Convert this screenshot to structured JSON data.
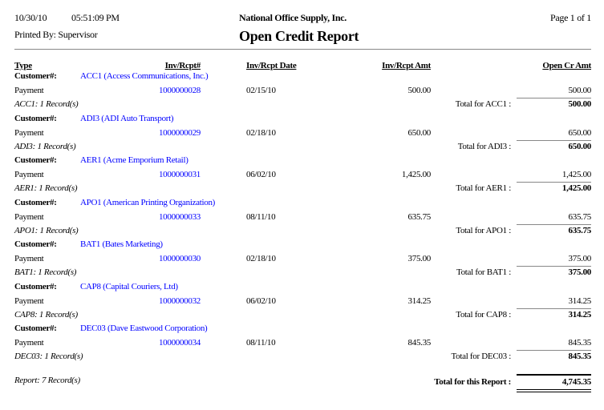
{
  "header": {
    "date": "10/30/10",
    "time": "05:51:09 PM",
    "printed_by": "Printed By: Supervisor",
    "company": "National Office Supply, Inc.",
    "title": "Open Credit Report",
    "page": "Page 1 of 1"
  },
  "columns": {
    "type": "Type",
    "inv_rcpt": "Inv/Rcpt#",
    "date": "Inv/Rcpt Date",
    "amt": "Inv/Rcpt Amt",
    "open": "Open Cr Amt"
  },
  "customer_label": "Customer#:",
  "link_color": "#0000ff",
  "groups": [
    {
      "customer": "ACC1 (Access Communications, Inc.)",
      "type": "Payment",
      "inv": "1000000028",
      "date": "02/15/10",
      "amt": "500.00",
      "open": "500.00",
      "summary": "ACC1: 1 Record(s)",
      "total_label": "Total for ACC1 :",
      "total": "500.00"
    },
    {
      "customer": "ADI3 (ADI Auto Transport)",
      "type": "Payment",
      "inv": "1000000029",
      "date": "02/18/10",
      "amt": "650.00",
      "open": "650.00",
      "summary": "ADI3: 1 Record(s)",
      "total_label": "Total for ADI3 :",
      "total": "650.00"
    },
    {
      "customer": "AER1 (Acme Emporium Retail)",
      "type": "Payment",
      "inv": "1000000031",
      "date": "06/02/10",
      "amt": "1,425.00",
      "open": "1,425.00",
      "summary": "AER1: 1 Record(s)",
      "total_label": "Total for AER1 :",
      "total": "1,425.00"
    },
    {
      "customer": "APO1 (American Printing Organization)",
      "type": "Payment",
      "inv": "1000000033",
      "date": "08/11/10",
      "amt": "635.75",
      "open": "635.75",
      "summary": "APO1: 1 Record(s)",
      "total_label": "Total for APO1 :",
      "total": "635.75"
    },
    {
      "customer": "BAT1 (Bates Marketing)",
      "type": "Payment",
      "inv": "1000000030",
      "date": "02/18/10",
      "amt": "375.00",
      "open": "375.00",
      "summary": "BAT1: 1 Record(s)",
      "total_label": "Total for BAT1 :",
      "total": "375.00"
    },
    {
      "customer": "CAP8 (Capital Couriers, Ltd)",
      "type": "Payment",
      "inv": "1000000032",
      "date": "06/02/10",
      "amt": "314.25",
      "open": "314.25",
      "summary": "CAP8: 1 Record(s)",
      "total_label": "Total for CAP8 :",
      "total": "314.25"
    },
    {
      "customer": "DEC03 (Dave Eastwood Corporation)",
      "type": "Payment",
      "inv": "1000000034",
      "date": "08/11/10",
      "amt": "845.35",
      "open": "845.35",
      "summary": "DEC03: 1 Record(s)",
      "total_label": "Total for DEC03 :",
      "total": "845.35"
    }
  ],
  "report": {
    "summary": "Report: 7 Record(s)",
    "total_label": "Total for this Report :",
    "total": "4,745.35"
  }
}
